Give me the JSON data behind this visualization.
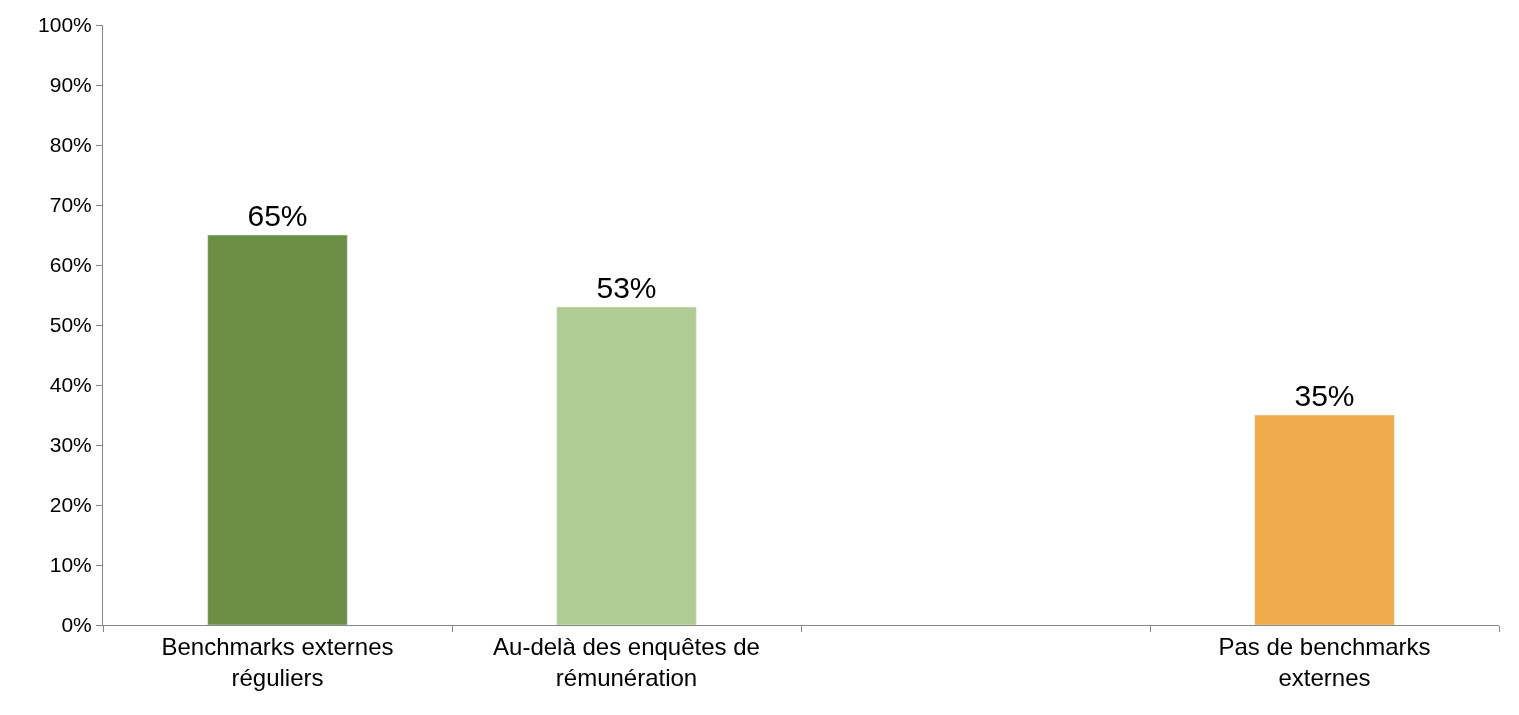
{
  "chart_data": {
    "type": "bar",
    "categories": [
      "Benchmarks externes réguliers",
      "Au-delà des enquêtes de rémunération",
      null,
      "Pas de benchmarks externes"
    ],
    "values": [
      65,
      53,
      null,
      35
    ],
    "colors": [
      "#6a8f45",
      "#b0cc94",
      null,
      "#f0ac4c"
    ],
    "value_labels": [
      "65%",
      "53%",
      null,
      "35%"
    ],
    "ylim": [
      0,
      100
    ],
    "yticks": [
      {
        "value": 0,
        "label": "0%"
      },
      {
        "value": 10,
        "label": "10%"
      },
      {
        "value": 20,
        "label": "20%"
      },
      {
        "value": 30,
        "label": "30%"
      },
      {
        "value": 40,
        "label": "40%"
      },
      {
        "value": 50,
        "label": "50%"
      },
      {
        "value": 60,
        "label": "60%"
      },
      {
        "value": 70,
        "label": "70%"
      },
      {
        "value": 80,
        "label": "80%"
      },
      {
        "value": 90,
        "label": "90%"
      },
      {
        "value": 100,
        "label": "100%"
      }
    ],
    "legend": false
  }
}
